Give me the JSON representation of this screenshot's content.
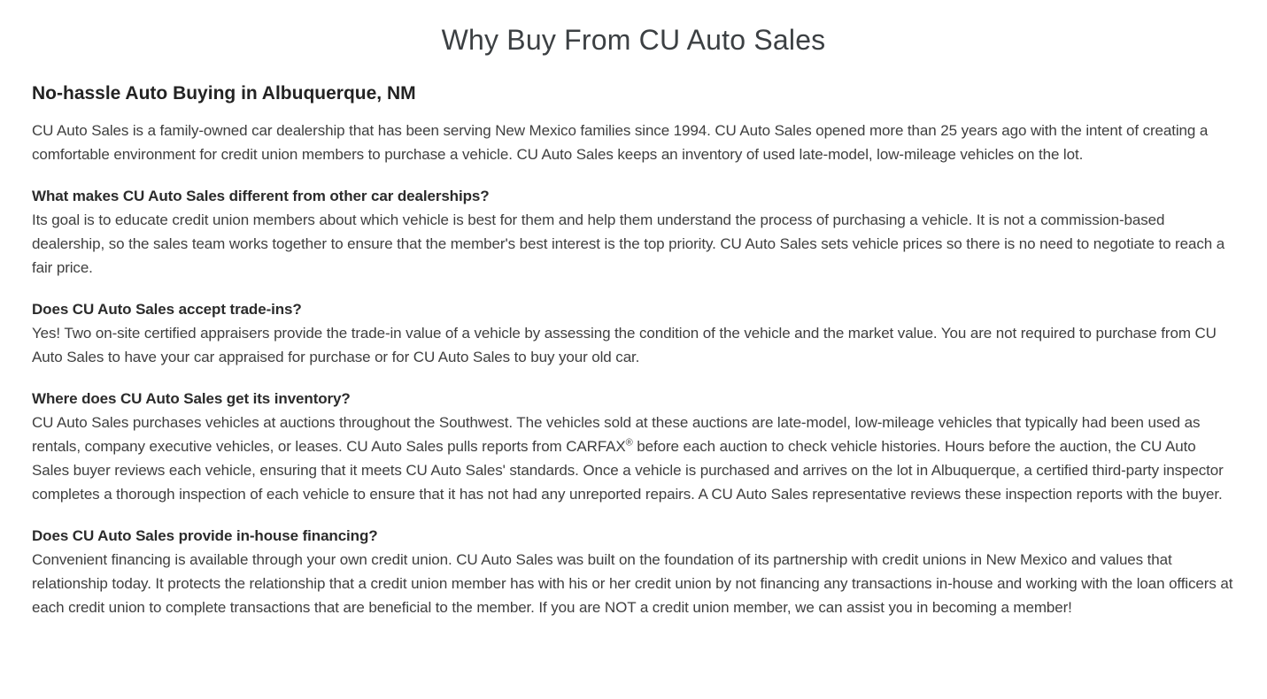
{
  "page": {
    "title": "Why Buy From CU Auto Sales",
    "subtitle": "No-hassle Auto Buying in Albuquerque, NM",
    "intro": "CU Auto Sales is a family-owned car dealership that has been serving New Mexico families since 1994. CU Auto Sales opened more than 25 years ago with the intent of creating a comfortable environment for credit union members to purchase a vehicle. CU Auto Sales keeps an inventory of used late-model, low-mileage vehicles on the lot.",
    "sections": [
      {
        "heading": "What makes CU Auto Sales different from other car dealerships?",
        "body": "Its goal is to educate credit union members about which vehicle is best for them and help them understand the process of purchasing a vehicle. It is not a commission-based dealership, so the sales team works together to ensure that the member's best interest is the top priority. CU Auto Sales sets vehicle prices so there is no need to negotiate to reach a fair price."
      },
      {
        "heading": "Does CU Auto Sales accept trade-ins?",
        "body": "Yes! Two on-site certified appraisers provide the trade-in value of a vehicle by assessing the condition of the vehicle and the market value. You are not required to purchase from CU Auto Sales to have your car appraised for purchase or for CU Auto Sales to buy your old car."
      },
      {
        "heading": "Where does CU Auto Sales get its inventory?",
        "body_pre": "CU Auto Sales purchases vehicles at auctions throughout the Southwest. The vehicles sold at these auctions are late-model, low-mileage vehicles that typically had been used as rentals, company executive vehicles, or leases. CU Auto Sales pulls reports from CARFAX",
        "trademark": "®",
        "body_post": " before each auction to check vehicle histories. Hours before the auction, the CU Auto Sales buyer reviews each vehicle, ensuring that it meets CU Auto Sales' standards. Once a vehicle is purchased and arrives on the lot in Albuquerque, a certified third-party inspector completes a thorough inspection of each vehicle to ensure that it has not had any unreported repairs. A CU Auto Sales representative reviews these inspection reports with the buyer."
      },
      {
        "heading": "Does CU Auto Sales provide in-house financing?",
        "body": "Convenient financing is available through your own credit union. CU Auto Sales was built on the foundation of its partnership with credit unions in New Mexico and values that relationship today. It protects the relationship that a credit union member has with his or her credit union by not financing any transactions in-house and working with the loan officers at each credit union to complete transactions that are beneficial to the member. If you are NOT a credit union member, we can assist you in becoming a member!"
      }
    ]
  },
  "colors": {
    "background": "#ffffff",
    "title": "#3c4043",
    "subtitle": "#232323",
    "section_heading": "#2b2b2b",
    "body": "#3f3f3f"
  }
}
